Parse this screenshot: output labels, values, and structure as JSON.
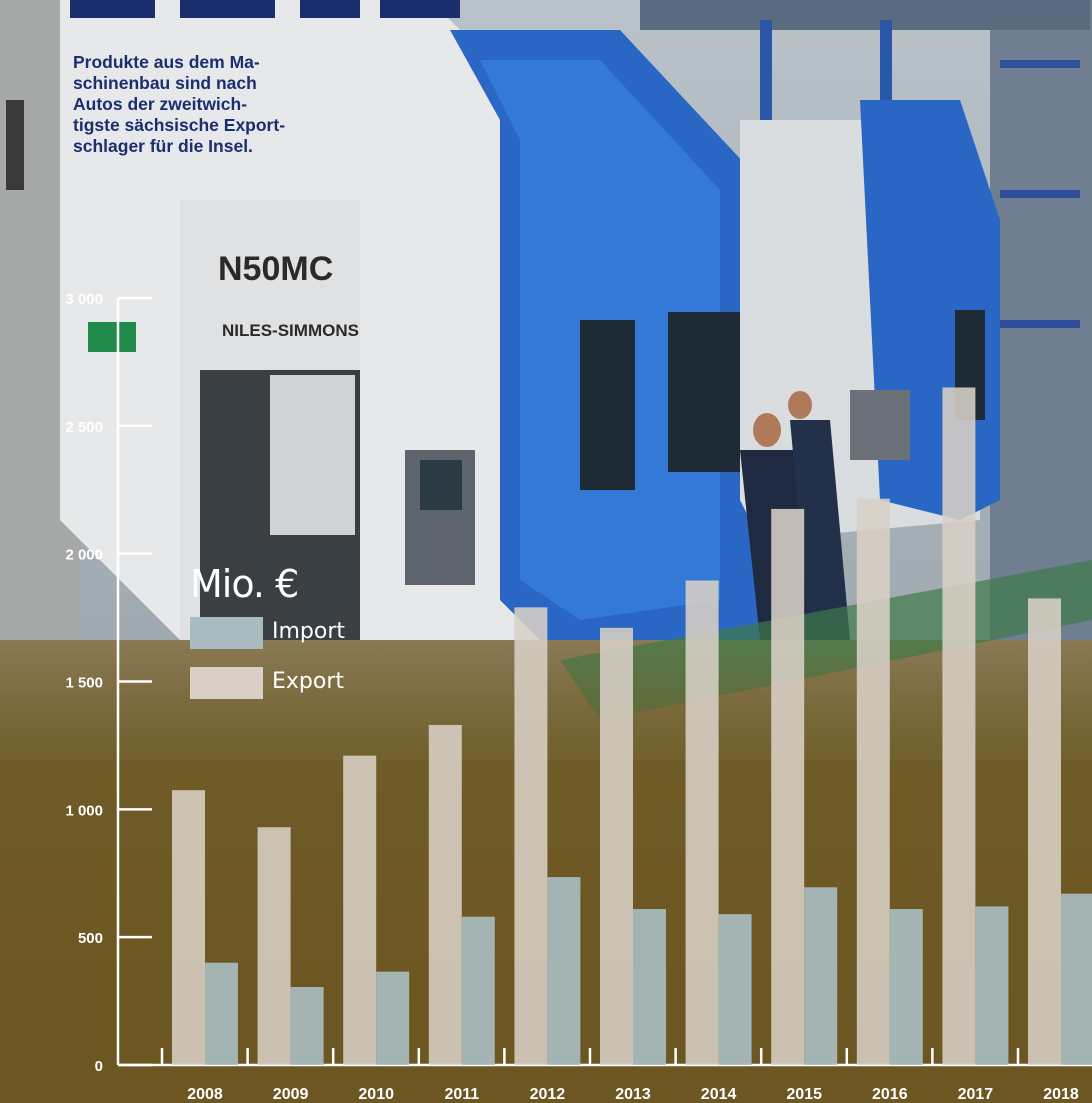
{
  "caption": "Produkte aus dem Ma-\nschinenbau sind nach\nAutos der zweitwich-\ntigste sächsische Export-\nschlager für die Insel.",
  "background_photo": {
    "machine_model": "N50MC",
    "machine_brand": "NILES-SIMMONS"
  },
  "legend": {
    "items": [
      {
        "label": "Import",
        "color": "#a9bcc0"
      },
      {
        "label": "Export",
        "color": "#d8d0c6"
      }
    ]
  },
  "chart_data": {
    "type": "bar",
    "title": "",
    "unit": "Mio. €",
    "categories": [
      "2008",
      "2009",
      "2010",
      "2011",
      "2012",
      "2013",
      "2014",
      "2015",
      "2016",
      "2017",
      "2018"
    ],
    "series": [
      {
        "name": "Export",
        "color": "#d8d0c6",
        "values": [
          1075,
          930,
          1210,
          1330,
          1790,
          1710,
          1895,
          2175,
          2215,
          2650,
          1825
        ]
      },
      {
        "name": "Import",
        "color": "#a9bcc0",
        "values": [
          400,
          305,
          365,
          580,
          735,
          610,
          590,
          695,
          610,
          620,
          670
        ]
      }
    ],
    "ylim": [
      0,
      3000
    ],
    "yticks": [
      0,
      500,
      1000,
      1500,
      2000,
      2500,
      3000
    ],
    "ytick_labels": [
      "0",
      "500",
      "1 000",
      "1 500",
      "2 000",
      "2 500",
      "3 000"
    ],
    "xlabel": "",
    "ylabel": "",
    "grid": false,
    "legend_position": "top-left"
  }
}
